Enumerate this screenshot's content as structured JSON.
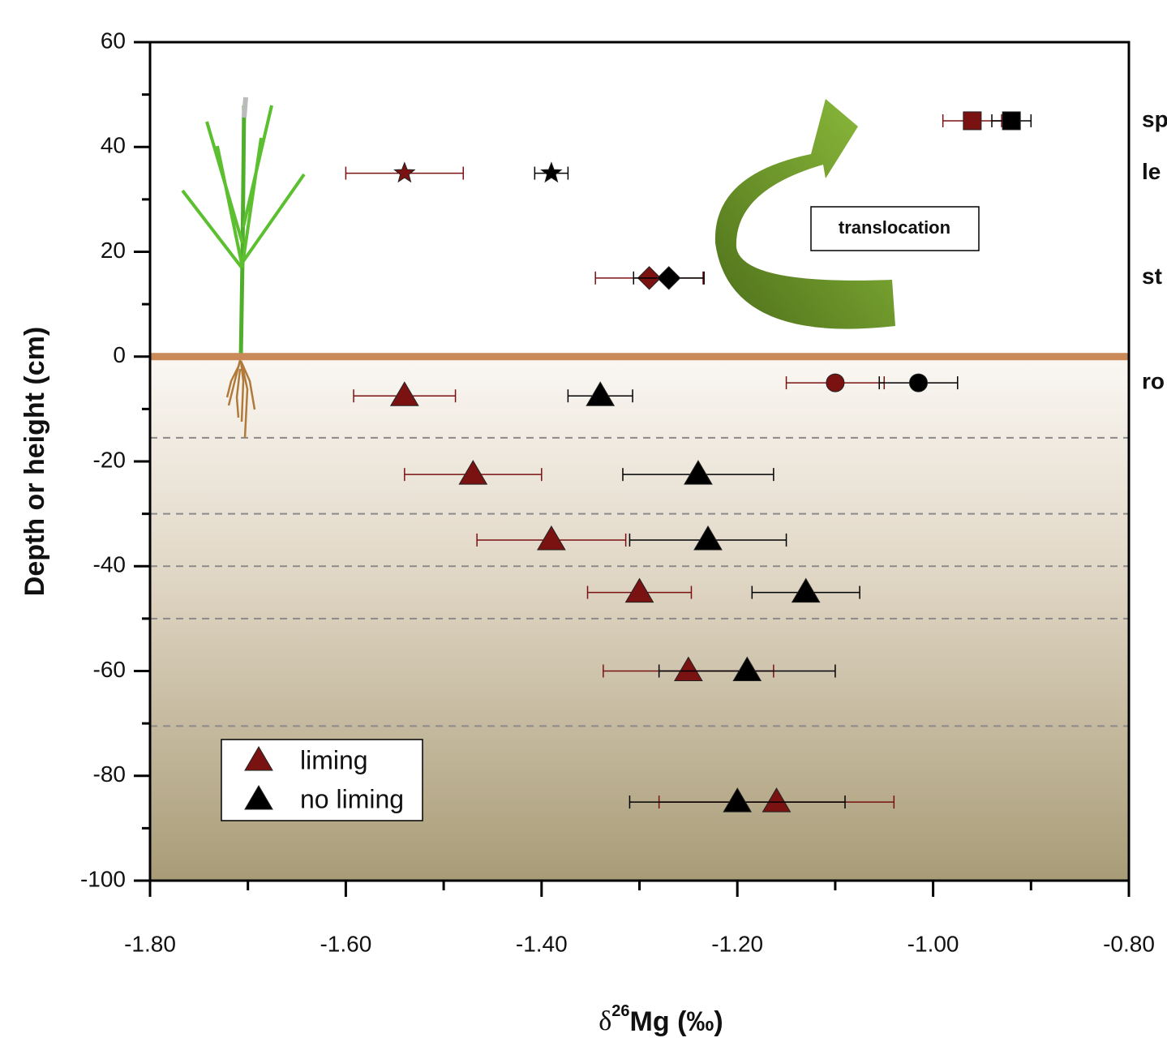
{
  "chart_data": {
    "type": "scatter",
    "ylabel": "Depth or height (cm)",
    "xlabel": {
      "symbol": "δ",
      "sup": "26",
      "main": "Mg (‰)"
    },
    "xlim": [
      -1.8,
      -0.8
    ],
    "xticks": [
      {
        "value": -1.8,
        "label": "-1.80"
      },
      {
        "value": -1.6,
        "label": "-1.60"
      },
      {
        "value": -1.4,
        "label": "-1.40"
      },
      {
        "value": -1.2,
        "label": "-1.20"
      },
      {
        "value": -1.0,
        "label": "-1.00"
      },
      {
        "value": -0.8,
        "label": "-0.80"
      }
    ],
    "xminorticks": [
      -1.7,
      -1.5,
      -1.3,
      -1.1,
      -0.9
    ],
    "ylim": [
      -100,
      60
    ],
    "yticks": [
      60,
      40,
      20,
      0,
      -20,
      -40,
      -60,
      -80,
      -100
    ],
    "yminorticks": [
      50,
      30,
      10,
      -10,
      -30,
      -50,
      -70,
      -90
    ],
    "soil_surface": 0,
    "layer_boundaries": [
      -15.5,
      -30,
      -40,
      -50,
      -70.5
    ],
    "organ_labels": [
      {
        "text": "sp",
        "y": 45
      },
      {
        "text": "le",
        "y": 35
      },
      {
        "text": "st",
        "y": 15
      },
      {
        "text": "ro",
        "y": -5
      }
    ],
    "annotation": "translocation",
    "legend": "lower left",
    "series": [
      {
        "name": "liming",
        "color": "#7a1212",
        "markers": [
          "square",
          "star",
          "diamond",
          "circle",
          "triangle",
          "triangle",
          "triangle",
          "triangle",
          "triangle",
          "triangle"
        ],
        "x": [
          -0.96,
          -1.54,
          -1.29,
          -1.1,
          -1.54,
          -1.47,
          -1.39,
          -1.3,
          -1.25,
          -1.16
        ],
        "y": [
          45,
          35,
          15,
          -5,
          -7.5,
          -22.5,
          -35,
          -45,
          -60,
          -85
        ],
        "xerr": [
          0.03,
          0.06,
          0.055,
          0.05,
          0.052,
          0.07,
          0.076,
          0.053,
          0.087,
          0.12
        ]
      },
      {
        "name": "no liming",
        "color": "#000000",
        "markers": [
          "square",
          "star",
          "diamond",
          "circle",
          "triangle",
          "triangle",
          "triangle",
          "triangle",
          "triangle",
          "triangle"
        ],
        "x": [
          -0.92,
          -1.39,
          -1.27,
          -1.015,
          -1.34,
          -1.24,
          -1.23,
          -1.13,
          -1.19,
          -1.2
        ],
        "y": [
          45,
          35,
          15,
          -5,
          -7.5,
          -22.5,
          -35,
          -45,
          -60,
          -85
        ],
        "xerr": [
          0.02,
          0.017,
          0.036,
          0.04,
          0.033,
          0.077,
          0.08,
          0.055,
          0.09,
          0.11
        ]
      }
    ]
  }
}
